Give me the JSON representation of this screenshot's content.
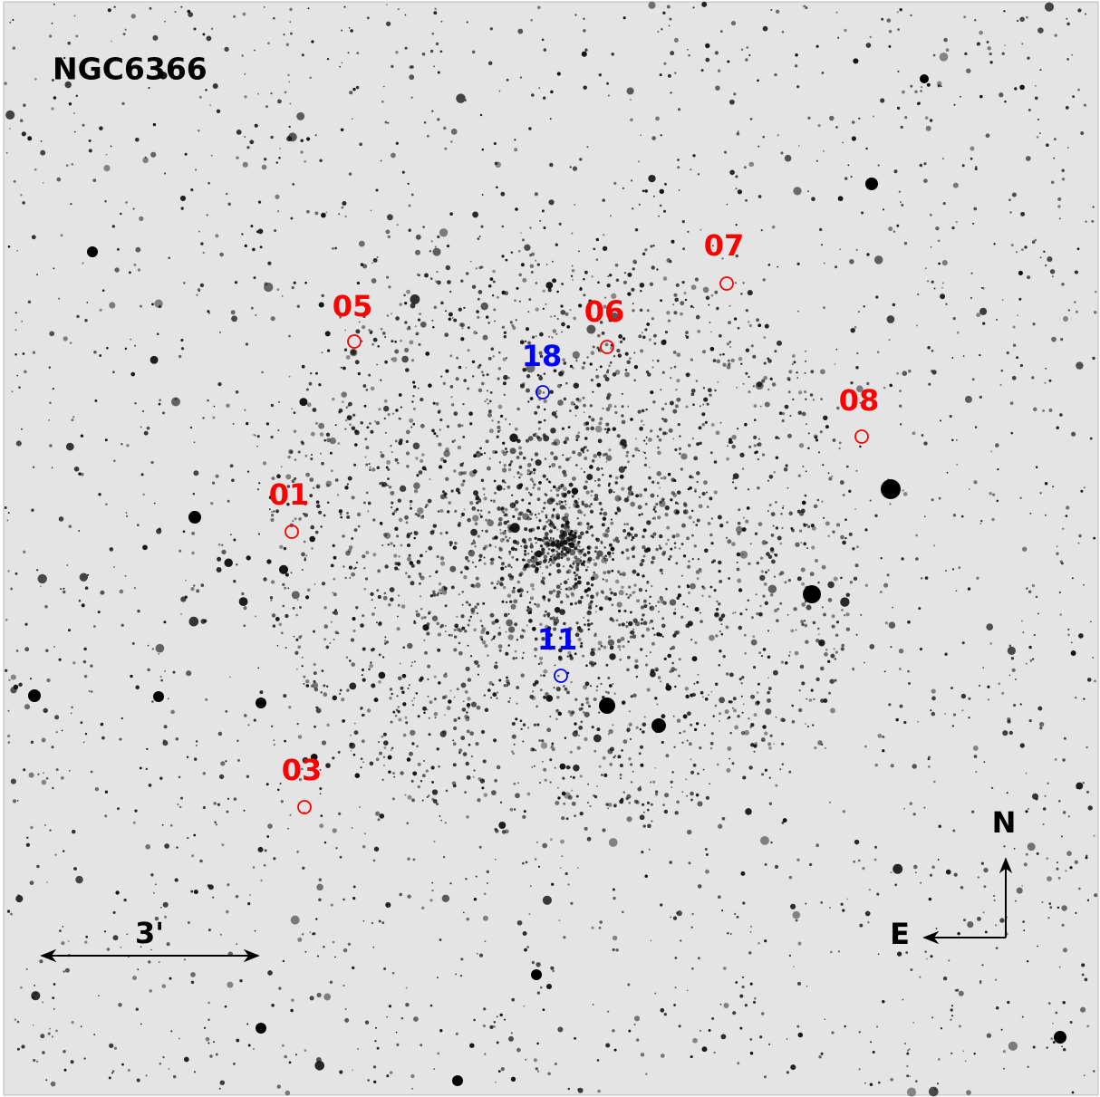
{
  "title": "NGC6366",
  "markers": [
    {
      "label": "05",
      "color": "#ff0000"
    },
    {
      "label": "06",
      "color": "#ff0000"
    },
    {
      "label": "07",
      "color": "#ff0000"
    },
    {
      "label": "18",
      "color": "#0000ff"
    },
    {
      "label": "08",
      "color": "#ff0000"
    },
    {
      "label": "01",
      "color": "#ff0000"
    },
    {
      "label": "11",
      "color": "#0000ff"
    },
    {
      "label": "03",
      "color": "#ff0000"
    }
  ],
  "scale_bar": {
    "label": "3'"
  },
  "compass": {
    "north": "N",
    "east": "E"
  }
}
